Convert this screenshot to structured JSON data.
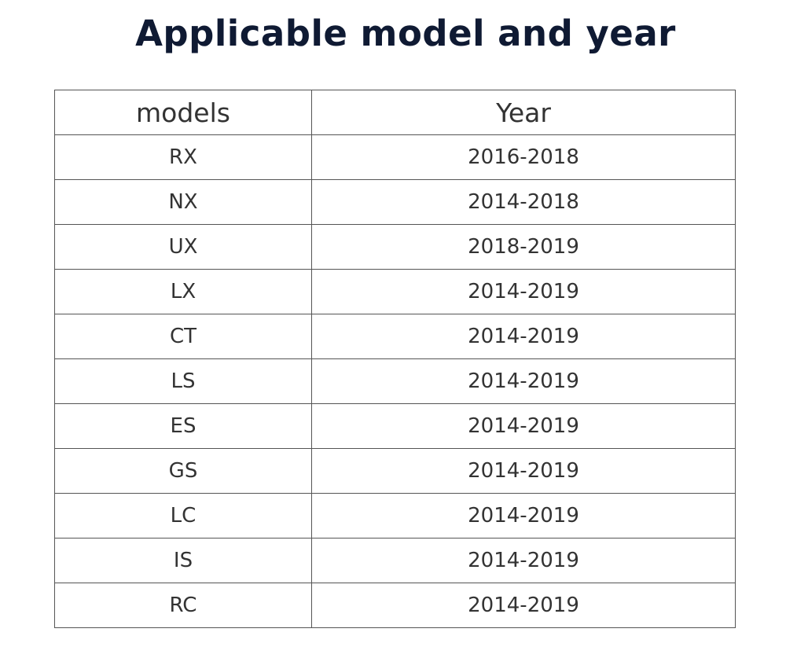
{
  "title": "Applicable model and year",
  "table": {
    "headers": [
      "models",
      "Year"
    ],
    "rows": [
      {
        "model": "RX",
        "year": "2016-2018"
      },
      {
        "model": "NX",
        "year": "2014-2018"
      },
      {
        "model": "UX",
        "year": "2018-2019"
      },
      {
        "model": "LX",
        "year": "2014-2019"
      },
      {
        "model": "CT",
        "year": "2014-2019"
      },
      {
        "model": "LS",
        "year": "2014-2019"
      },
      {
        "model": "ES",
        "year": "2014-2019"
      },
      {
        "model": "GS",
        "year": "2014-2019"
      },
      {
        "model": "LC",
        "year": "2014-2019"
      },
      {
        "model": "IS",
        "year": "2014-2019"
      },
      {
        "model": "RC",
        "year": "2014-2019"
      }
    ]
  }
}
